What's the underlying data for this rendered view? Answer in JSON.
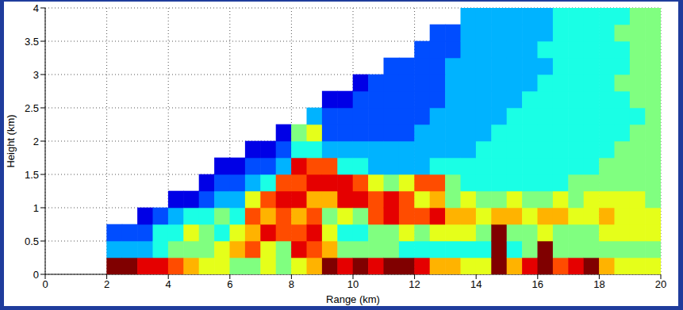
{
  "chart_data": {
    "type": "heatmap",
    "x_label": "Range (km)",
    "y_label": "Height (km)",
    "xlim": [
      0,
      20
    ],
    "xticks": [
      0,
      2,
      4,
      6,
      8,
      10,
      12,
      14,
      16,
      18,
      20
    ],
    "ylim": [
      0,
      4
    ],
    "yticks": [
      0,
      0.5,
      1,
      1.5,
      2,
      2.5,
      3,
      3.5,
      4
    ],
    "grid": true,
    "zlim": [
      0,
      10
    ],
    "x": [
      2.25,
      2.75,
      3.25,
      3.75,
      4.25,
      4.75,
      5.25,
      5.75,
      6.25,
      6.75,
      7.25,
      7.75,
      8.25,
      8.75,
      9.25,
      9.75,
      10.25,
      10.75,
      11.25,
      11.75,
      12.25,
      12.75,
      13.25,
      13.75,
      14.25,
      14.75,
      15.25,
      15.75,
      16.25,
      16.75,
      17.25,
      17.75,
      18.25,
      18.75,
      19.25,
      19.75
    ],
    "y": [
      0.125,
      0.375,
      0.625,
      0.875,
      1.125,
      1.375,
      1.625,
      1.875,
      2.125,
      2.375,
      2.625,
      2.875,
      3.125,
      3.375,
      3.625,
      3.875
    ],
    "z": [
      [
        10,
        3,
        2,
        null,
        null,
        null,
        null,
        null,
        null,
        null,
        null,
        null,
        null,
        null,
        null,
        null
      ],
      [
        10,
        3,
        2,
        null,
        null,
        null,
        null,
        null,
        null,
        null,
        null,
        null,
        null,
        null,
        null,
        null
      ],
      [
        9,
        3,
        2,
        1,
        null,
        null,
        null,
        null,
        null,
        null,
        null,
        null,
        null,
        null,
        null,
        null
      ],
      [
        9,
        4,
        4,
        2,
        null,
        null,
        null,
        null,
        null,
        null,
        null,
        null,
        null,
        null,
        null,
        null
      ],
      [
        8,
        5,
        4,
        3,
        1,
        null,
        null,
        null,
        null,
        null,
        null,
        null,
        null,
        null,
        null,
        null
      ],
      [
        7,
        5,
        6,
        4,
        1,
        null,
        null,
        null,
        null,
        null,
        null,
        null,
        null,
        null,
        null,
        null
      ],
      [
        6,
        5,
        5,
        4,
        2,
        1,
        null,
        null,
        null,
        null,
        null,
        null,
        null,
        null,
        null,
        null
      ],
      [
        6,
        6,
        4,
        5,
        3,
        2,
        1,
        null,
        null,
        null,
        null,
        null,
        null,
        null,
        null,
        null
      ],
      [
        5,
        7,
        6,
        4,
        3,
        2,
        1,
        null,
        null,
        null,
        null,
        null,
        null,
        null,
        null,
        null
      ],
      [
        5,
        8,
        7,
        8,
        6,
        3,
        2,
        1,
        null,
        null,
        null,
        null,
        null,
        null,
        null,
        null
      ],
      [
        6,
        6,
        9,
        7,
        8,
        4,
        2,
        1,
        null,
        null,
        null,
        null,
        null,
        null,
        null,
        null
      ],
      [
        5,
        5,
        8,
        8,
        9,
        8,
        3,
        2,
        1,
        null,
        null,
        null,
        null,
        null,
        null,
        null
      ],
      [
        6,
        9,
        8,
        7,
        9,
        8,
        9,
        4,
        5,
        null,
        null,
        null,
        null,
        null,
        null,
        null
      ],
      [
        7,
        8,
        9,
        8,
        7,
        9,
        8,
        4,
        6,
        3,
        null,
        null,
        null,
        null,
        null,
        null
      ],
      [
        10,
        7,
        6,
        5,
        7,
        9,
        8,
        3,
        2,
        2,
        1,
        null,
        null,
        null,
        null,
        null
      ],
      [
        9,
        5,
        4,
        6,
        9,
        9,
        4,
        3,
        2,
        2,
        1,
        null,
        null,
        null,
        null,
        null
      ],
      [
        10,
        5,
        4,
        5,
        9,
        8,
        4,
        3,
        2,
        2,
        2,
        1,
        null,
        null,
        null,
        null
      ],
      [
        9,
        5,
        5,
        8,
        8,
        6,
        3,
        3,
        2,
        2,
        2,
        2,
        null,
        null,
        null,
        null
      ],
      [
        10,
        5,
        5,
        9,
        9,
        5,
        3,
        3,
        2,
        2,
        2,
        2,
        2,
        null,
        null,
        null
      ],
      [
        10,
        4,
        6,
        8,
        8,
        6,
        3,
        3,
        2,
        2,
        2,
        2,
        2,
        null,
        null,
        null
      ],
      [
        9,
        4,
        5,
        8,
        6,
        8,
        3,
        3,
        3,
        2,
        2,
        2,
        2,
        2,
        null,
        null
      ],
      [
        7,
        4,
        6,
        9,
        7,
        8,
        4,
        3,
        3,
        3,
        2,
        2,
        2,
        2,
        2,
        null
      ],
      [
        7,
        4,
        6,
        7,
        5,
        5,
        4,
        3,
        3,
        3,
        3,
        3,
        3,
        2,
        2,
        null
      ],
      [
        6,
        4,
        6,
        7,
        6,
        4,
        4,
        3,
        3,
        3,
        3,
        3,
        3,
        3,
        3,
        3
      ],
      [
        6,
        4,
        5,
        6,
        5,
        4,
        4,
        4,
        3,
        3,
        3,
        3,
        3,
        3,
        3,
        3
      ],
      [
        10,
        10,
        10,
        7,
        5,
        4,
        4,
        4,
        4,
        3,
        3,
        3,
        3,
        3,
        3,
        3
      ],
      [
        7,
        4,
        5,
        7,
        6,
        4,
        4,
        4,
        4,
        4,
        3,
        3,
        3,
        3,
        3,
        3
      ],
      [
        9,
        5,
        5,
        6,
        5,
        4,
        4,
        4,
        4,
        4,
        4,
        3,
        3,
        3,
        3,
        3
      ],
      [
        10,
        10,
        6,
        7,
        5,
        4,
        4,
        4,
        4,
        4,
        4,
        4,
        3,
        4,
        3,
        3
      ],
      [
        8,
        5,
        5,
        7,
        6,
        4,
        4,
        4,
        4,
        4,
        4,
        4,
        4,
        4,
        4,
        4
      ],
      [
        9,
        5,
        5,
        6,
        5,
        5,
        4,
        4,
        4,
        4,
        4,
        4,
        4,
        4,
        4,
        4
      ],
      [
        10,
        5,
        5,
        6,
        6,
        5,
        4,
        4,
        4,
        4,
        4,
        4,
        4,
        4,
        4,
        4
      ],
      [
        7,
        5,
        6,
        7,
        6,
        5,
        5,
        4,
        4,
        4,
        4,
        4,
        4,
        4,
        4,
        4
      ],
      [
        6,
        5,
        6,
        6,
        6,
        5,
        5,
        5,
        4,
        4,
        4,
        5,
        4,
        4,
        5,
        4
      ],
      [
        6,
        5,
        6,
        6,
        6,
        5,
        5,
        5,
        5,
        4,
        5,
        5,
        5,
        5,
        5,
        5
      ],
      [
        6,
        5,
        6,
        6,
        5,
        5,
        5,
        5,
        5,
        5,
        5,
        5,
        5,
        5,
        5,
        5
      ]
    ]
  }
}
